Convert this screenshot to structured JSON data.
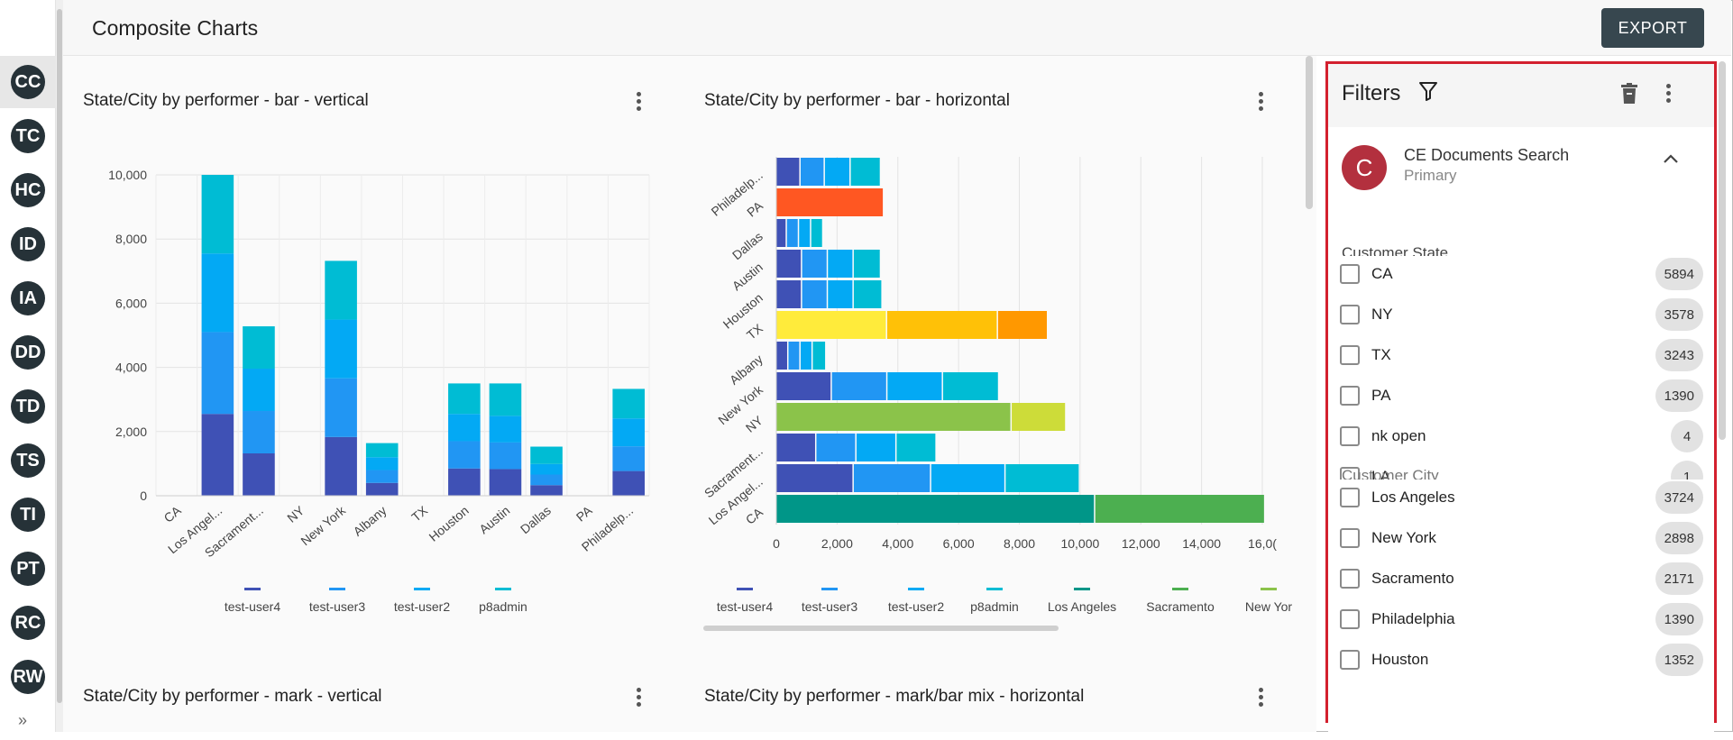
{
  "header": {
    "title": "Composite Charts",
    "export_label": "EXPORT"
  },
  "rail": {
    "items": [
      "CC",
      "TC",
      "HC",
      "ID",
      "IA",
      "DD",
      "TD",
      "TS",
      "TI",
      "PT",
      "RC",
      "RW"
    ],
    "expand_icon": "double-chevron-right-icon"
  },
  "cards": {
    "c1": {
      "title": "State/City by performer - bar - vertical"
    },
    "c2": {
      "title": "State/City by performer - bar - horizontal"
    },
    "c3": {
      "title": "State/City by performer - mark - vertical"
    },
    "c4": {
      "title": "State/City by performer - mark/bar mix - horizontal"
    }
  },
  "colors": {
    "test-user4": "#3f51b5",
    "test-user3": "#2196f3",
    "test-user2": "#03a9f4",
    "p8admin": "#00bcd4",
    "Los Angeles": "#009688",
    "Sacramento": "#4caf50",
    "New York": "#8bc34a",
    "orange_red": "#ff5722",
    "yellow": "#ffeb3b",
    "amber": "#ffc107",
    "orange": "#ff9800",
    "lime": "#cddc39",
    "accent_red": "#d3202e"
  },
  "chart_data": [
    {
      "type": "bar",
      "stacked": true,
      "categories": [
        "CA",
        "Los Angel...",
        "Sacrament...",
        "NY",
        "New York",
        "Albany",
        "TX",
        "Houston",
        "Austin",
        "Dallas",
        "PA",
        "Philadelp..."
      ],
      "series": [
        {
          "name": "test-user4",
          "values": [
            0,
            2550,
            1320,
            0,
            1830,
            400,
            0,
            850,
            830,
            330,
            0,
            770
          ]
        },
        {
          "name": "test-user3",
          "values": [
            0,
            2550,
            1320,
            0,
            1830,
            400,
            0,
            850,
            830,
            330,
            0,
            770
          ]
        },
        {
          "name": "test-user2",
          "values": [
            0,
            2450,
            1320,
            0,
            1830,
            400,
            0,
            850,
            830,
            330,
            0,
            870
          ]
        },
        {
          "name": "p8admin",
          "values": [
            0,
            2450,
            1320,
            0,
            1830,
            440,
            0,
            950,
            1010,
            540,
            0,
            920
          ]
        }
      ],
      "ylim": [
        0,
        10000
      ],
      "yticks": [
        "10,000",
        "8,000",
        "6,000",
        "4,000",
        "2,000",
        "0"
      ],
      "legend": [
        "test-user4",
        "test-user3",
        "test-user2",
        "p8admin"
      ],
      "grid": true
    },
    {
      "type": "bar",
      "orientation": "horizontal",
      "stacked": true,
      "categories": [
        "Philadelp...",
        "PA",
        "Dallas",
        "Austin",
        "Houston",
        "TX",
        "Albany",
        "New York",
        "NY",
        "Sacrament...",
        "Los Angel...",
        "CA"
      ],
      "segments": [
        [
          {
            "c": "test-user4",
            "v": 800
          },
          {
            "c": "test-user3",
            "v": 800
          },
          {
            "c": "test-user2",
            "v": 850
          },
          {
            "c": "p8admin",
            "v": 1000
          }
        ],
        [
          {
            "c": "orange_red",
            "v": 3550
          }
        ],
        [
          {
            "c": "test-user4",
            "v": 350
          },
          {
            "c": "test-user3",
            "v": 400
          },
          {
            "c": "test-user2",
            "v": 400
          },
          {
            "c": "p8admin",
            "v": 400
          }
        ],
        [
          {
            "c": "test-user4",
            "v": 850
          },
          {
            "c": "test-user3",
            "v": 850
          },
          {
            "c": "test-user2",
            "v": 850
          },
          {
            "c": "p8admin",
            "v": 900
          }
        ],
        [
          {
            "c": "test-user4",
            "v": 850
          },
          {
            "c": "test-user3",
            "v": 850
          },
          {
            "c": "test-user2",
            "v": 850
          },
          {
            "c": "p8admin",
            "v": 950
          }
        ],
        [
          {
            "c": "yellow",
            "v": 3650
          },
          {
            "c": "amber",
            "v": 3650
          },
          {
            "c": "orange",
            "v": 1650
          }
        ],
        [
          {
            "c": "test-user4",
            "v": 400
          },
          {
            "c": "test-user3",
            "v": 400
          },
          {
            "c": "test-user2",
            "v": 400
          },
          {
            "c": "p8admin",
            "v": 450
          }
        ],
        [
          {
            "c": "test-user4",
            "v": 1830
          },
          {
            "c": "test-user3",
            "v": 1830
          },
          {
            "c": "test-user2",
            "v": 1830
          },
          {
            "c": "p8admin",
            "v": 1850
          }
        ],
        [
          {
            "c": "New York",
            "v": 7750
          },
          {
            "c": "lime",
            "v": 1800
          }
        ],
        [
          {
            "c": "test-user4",
            "v": 1320
          },
          {
            "c": "test-user3",
            "v": 1320
          },
          {
            "c": "test-user2",
            "v": 1320
          },
          {
            "c": "p8admin",
            "v": 1320
          }
        ],
        [
          {
            "c": "test-user4",
            "v": 2550
          },
          {
            "c": "test-user3",
            "v": 2550
          },
          {
            "c": "test-user2",
            "v": 2450
          },
          {
            "c": "p8admin",
            "v": 2450
          }
        ],
        [
          {
            "c": "Los Angeles",
            "v": 10500
          },
          {
            "c": "Sacramento",
            "v": 5600
          }
        ]
      ],
      "xlim": [
        0,
        16000
      ],
      "xticks": [
        "0",
        "2,000",
        "4,000",
        "6,000",
        "8,000",
        "10,000",
        "12,000",
        "14,000",
        "16,0("
      ],
      "legend": [
        "test-user4",
        "test-user3",
        "test-user2",
        "p8admin",
        "Los Angeles",
        "Sacramento",
        "New Yor"
      ],
      "grid": true
    }
  ],
  "filters": {
    "title": "Filters",
    "source": {
      "avatar": "C",
      "name": "CE Documents Search",
      "subtitle": "Primary"
    },
    "state_label": "Customer State",
    "states": [
      {
        "label": "CA",
        "count": "5894"
      },
      {
        "label": "NY",
        "count": "3578"
      },
      {
        "label": "TX",
        "count": "3243"
      },
      {
        "label": "PA",
        "count": "1390"
      },
      {
        "label": "nk open",
        "count": "4"
      },
      {
        "label": "LA",
        "count": "1"
      }
    ],
    "city_label": "Customer City",
    "cities": [
      {
        "label": "Los Angeles",
        "count": "3724"
      },
      {
        "label": "New York",
        "count": "2898"
      },
      {
        "label": "Sacramento",
        "count": "2171"
      },
      {
        "label": "Philadelphia",
        "count": "1390"
      },
      {
        "label": "Houston",
        "count": "1352"
      }
    ]
  }
}
